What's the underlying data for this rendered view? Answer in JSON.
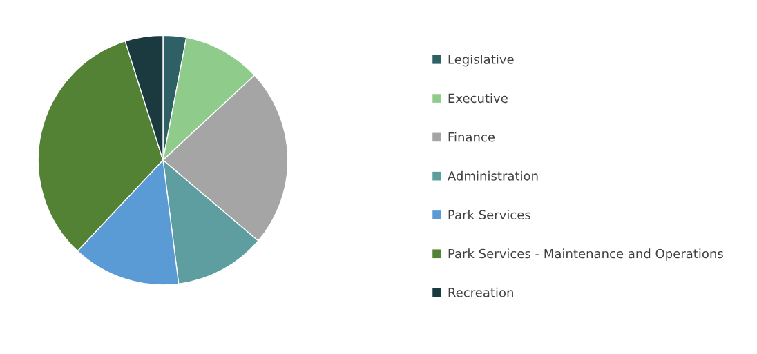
{
  "chart_data": {
    "type": "pie",
    "categories": [
      "Legislative",
      "Executive",
      "Finance",
      "Administration",
      "Park Services",
      "Park Services - Maintenance and Operations",
      "Recreation"
    ],
    "values": [
      3,
      10.1,
      23.1,
      11.8,
      14,
      33.1,
      4.9
    ],
    "colors": [
      "#2e6066",
      "#8fcc8c",
      "#a5a5a5",
      "#5f9ea0",
      "#5b9bd5",
      "#548235",
      "#1b3a40"
    ],
    "legend": "right"
  }
}
